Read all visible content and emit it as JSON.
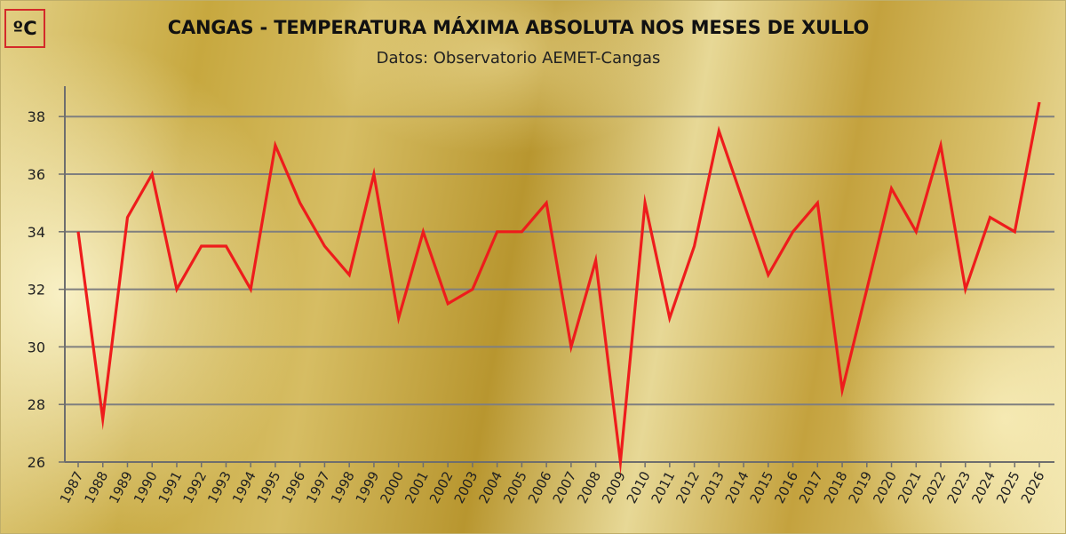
{
  "unit_label": "ºC",
  "chart_data": {
    "type": "line",
    "title": "CANGAS - TEMPERATURA MÁXIMA ABSOLUTA NOS MESES DE XULLO",
    "subtitle": "Datos: Observatorio AEMET-Cangas",
    "xlabel": "",
    "ylabel": "",
    "ylim": [
      26,
      39
    ],
    "yticks": [
      26,
      28,
      30,
      32,
      34,
      36,
      38
    ],
    "grid": "horizontal",
    "line_color": "#ee1c1c",
    "x": [
      "1987",
      "1988",
      "1989",
      "1990",
      "1991",
      "1992",
      "1993",
      "1994",
      "1995",
      "1996",
      "1997",
      "1998",
      "1999",
      "2000",
      "2001",
      "2002",
      "2003",
      "2004",
      "2005",
      "2006",
      "2007",
      "2008",
      "2009",
      "2010",
      "2011",
      "2012",
      "2013",
      "2014",
      "2015",
      "2016",
      "2017",
      "2018",
      "2019",
      "2020",
      "2021",
      "2022",
      "2023",
      "2024",
      "2025",
      "2026"
    ],
    "series": [
      {
        "values": [
          34.0,
          27.5,
          34.5,
          36.0,
          32.0,
          33.5,
          33.5,
          32.0,
          37.0,
          35.0,
          33.5,
          32.5,
          36.0,
          31.0,
          34.0,
          31.5,
          32.0,
          34.0,
          34.0,
          35.0,
          30.0,
          33.0,
          26.0,
          35.0,
          31.0,
          33.5,
          37.5,
          35.0,
          32.5,
          34.0,
          35.0,
          28.5,
          32.0,
          35.5,
          34.0,
          37.0,
          32.0,
          34.5,
          34.0,
          38.5
        ]
      }
    ]
  }
}
